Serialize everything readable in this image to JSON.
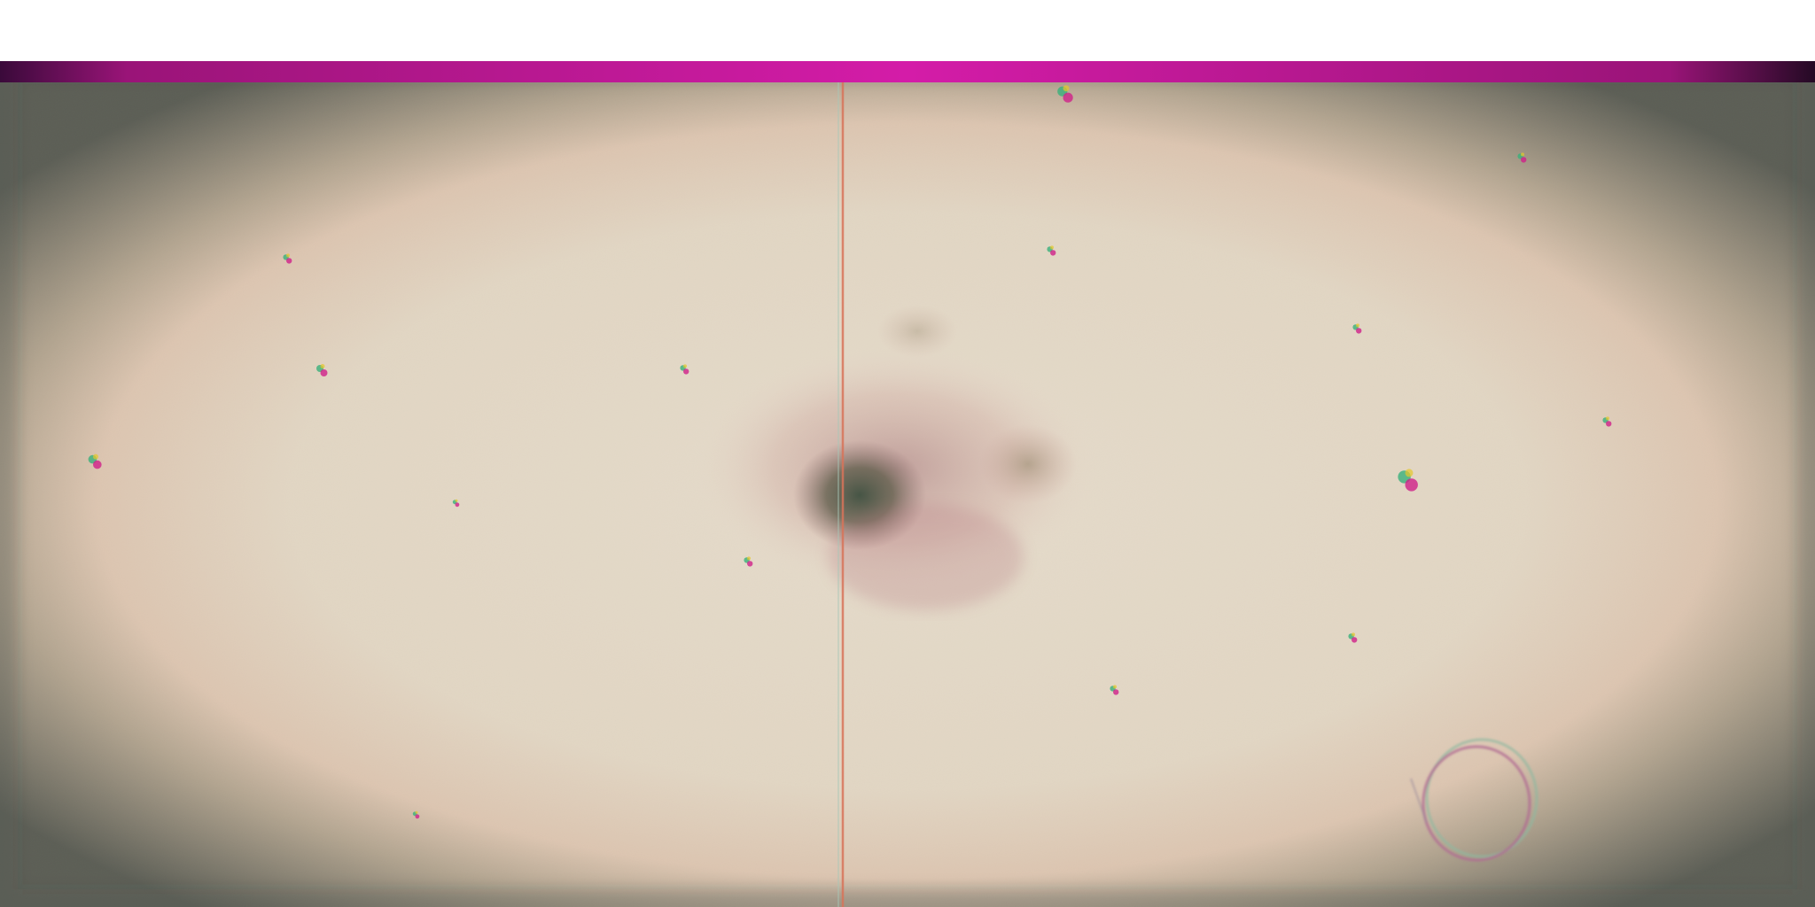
{
  "image": {
    "kind": "microscope field photograph",
    "colors": {
      "page_background": "#ffffff",
      "top_band": "#c8189a",
      "top_band_dark": "#3a0a3a",
      "field_center": "#f4ead8",
      "field_edge_mid": "#e6c6b0",
      "vignette_dark": "#1f2a28",
      "central_blob_core": "#4a5a44",
      "central_blob_halo": "#b07a80",
      "vertical_line": "#d8745a",
      "ring_outline": "#9a7a8a"
    },
    "features": [
      "top-magenta-band",
      "elliptical-bright-field",
      "dark-vignette",
      "vertical-scratch-line",
      "central-dark-blob",
      "scattered-color-specks",
      "ring-bubble-lower-right"
    ]
  }
}
